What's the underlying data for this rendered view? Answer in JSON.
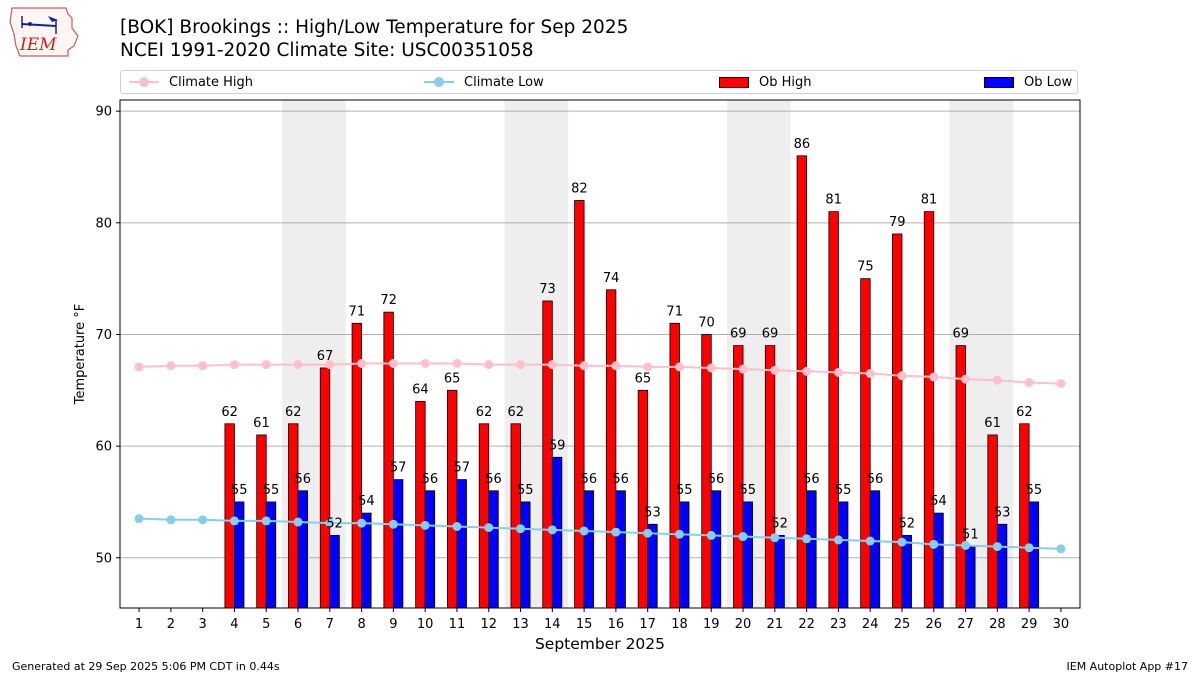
{
  "logo_text": "IEM",
  "title_line1": "[BOK] Brookings :: High/Low Temperature for Sep 2025",
  "title_line2": "NCEI 1991-2020 Climate Site: USC00351058",
  "legend": {
    "climate_high": "Climate High",
    "climate_low": "Climate Low",
    "ob_high": "Ob High",
    "ob_low": "Ob Low"
  },
  "colors": {
    "climate_high": "#ffc0cb",
    "climate_low": "#87ceeb",
    "ob_high": "#ff0000",
    "ob_low": "#0000ff",
    "weekend_shade": "#eeeeee",
    "grid": "#b0b0b0"
  },
  "footer_left": "Generated at 29 Sep 2025 5:06 PM CDT in 0.44s",
  "footer_right": "IEM Autoplot App #17",
  "chart_data": {
    "type": "bar",
    "title": "[BOK] Brookings :: High/Low Temperature for Sep 2025",
    "subtitle": "NCEI 1991-2020 Climate Site: USC00351058",
    "xlabel": "September 2025",
    "ylabel": "Temperature °F",
    "ylim": [
      45.5,
      91
    ],
    "yticks": [
      50,
      60,
      70,
      80,
      90
    ],
    "grid": "horizontal",
    "legend_position": "top",
    "days": [
      1,
      2,
      3,
      4,
      5,
      6,
      7,
      8,
      9,
      10,
      11,
      12,
      13,
      14,
      15,
      16,
      17,
      18,
      19,
      20,
      21,
      22,
      23,
      24,
      25,
      26,
      27,
      28,
      29,
      30
    ],
    "weekend_shaded_days": [
      [
        6,
        7
      ],
      [
        13,
        14
      ],
      [
        20,
        21
      ],
      [
        27,
        28
      ]
    ],
    "series": [
      {
        "name": "Ob High",
        "kind": "bar",
        "values": [
          null,
          null,
          null,
          62,
          61,
          62,
          67,
          71,
          72,
          64,
          65,
          62,
          62,
          73,
          82,
          74,
          65,
          71,
          70,
          69,
          69,
          86,
          81,
          75,
          79,
          81,
          69,
          61,
          62,
          null
        ]
      },
      {
        "name": "Ob Low",
        "kind": "bar",
        "values": [
          null,
          null,
          null,
          55,
          55,
          56,
          52,
          54,
          57,
          56,
          57,
          56,
          55,
          59,
          56,
          56,
          53,
          55,
          56,
          55,
          52,
          56,
          55,
          56,
          52,
          54,
          51,
          53,
          55,
          null
        ]
      },
      {
        "name": "Climate High",
        "kind": "line",
        "values": [
          67.1,
          67.2,
          67.2,
          67.3,
          67.3,
          67.3,
          67.3,
          67.4,
          67.4,
          67.4,
          67.4,
          67.3,
          67.3,
          67.3,
          67.2,
          67.2,
          67.1,
          67.1,
          67.0,
          66.9,
          66.8,
          66.7,
          66.6,
          66.5,
          66.3,
          66.2,
          66.0,
          65.9,
          65.7,
          65.6
        ]
      },
      {
        "name": "Climate Low",
        "kind": "line",
        "values": [
          53.5,
          53.4,
          53.4,
          53.3,
          53.3,
          53.2,
          53.1,
          53.1,
          53.0,
          52.9,
          52.8,
          52.7,
          52.6,
          52.5,
          52.4,
          52.3,
          52.2,
          52.1,
          52.0,
          51.9,
          51.8,
          51.7,
          51.6,
          51.5,
          51.4,
          51.2,
          51.1,
          51.0,
          50.9,
          50.8
        ]
      }
    ],
    "ob_high_labels": [
      "",
      "",
      "",
      "62",
      "61",
      "62",
      "67",
      "71",
      "72",
      "64",
      "65",
      "62",
      "62",
      "73",
      "82",
      "74",
      "65",
      "71",
      "70",
      "69",
      "69",
      "86",
      "81",
      "75",
      "79",
      "81",
      "69",
      "61",
      "62",
      ""
    ],
    "ob_low_labels": [
      "",
      "",
      "",
      "55",
      "55",
      "56",
      "52",
      "54",
      "57",
      "56",
      "57",
      "56",
      "55",
      "59",
      "56",
      "56",
      "53",
      "55",
      "56",
      "55",
      "52",
      "56",
      "55",
      "56",
      "52",
      "54",
      "51",
      "53",
      "55",
      ""
    ]
  }
}
